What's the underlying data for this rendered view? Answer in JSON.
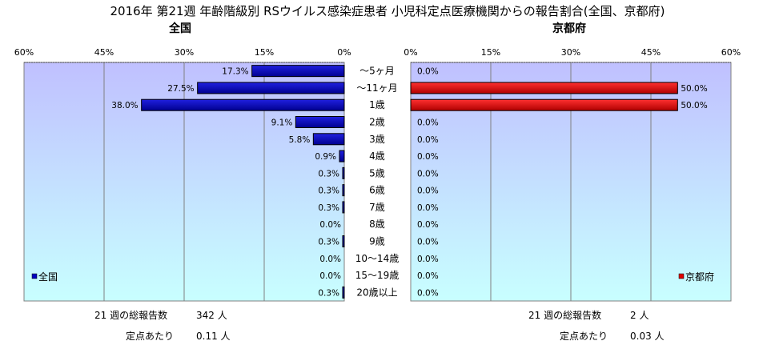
{
  "title": "2016年 第21週 年齢階級別 RSウイルス感染症患者 小児科定点医療機関からの報告割合(全国、京都府)",
  "chart_data": [
    {
      "type": "bar",
      "orientation": "horizontal",
      "direction": "right-to-left",
      "title": "全国",
      "categories": [
        "～5ヶ月",
        "～11ヶ月",
        "1歳",
        "2歳",
        "3歳",
        "4歳",
        "5歳",
        "6歳",
        "7歳",
        "8歳",
        "9歳",
        "10～14歳",
        "15～19歳",
        "20歳以上"
      ],
      "series": [
        {
          "name": "全国",
          "color": "#0000c0",
          "values": [
            17.3,
            27.5,
            38.0,
            9.1,
            5.8,
            0.9,
            0.3,
            0.3,
            0.3,
            0.0,
            0.3,
            0.0,
            0.0,
            0.3
          ],
          "labels": [
            "17.3%",
            "27.5%",
            "38.0%",
            "9.1%",
            "5.8%",
            "0.9%",
            "0.3%",
            "0.3%",
            "0.3%",
            "0.0%",
            "0.3%",
            "0.0%",
            "0.0%",
            "0.3%"
          ]
        }
      ],
      "xlim": [
        0,
        60
      ],
      "ticks": [
        "60%",
        "45%",
        "30%",
        "15%",
        "0%"
      ],
      "legend": {
        "label": "全国",
        "position": "bottom-left"
      },
      "grid": true
    },
    {
      "type": "bar",
      "orientation": "horizontal",
      "direction": "left-to-right",
      "title": "京都府",
      "categories": [
        "～5ヶ月",
        "～11ヶ月",
        "1歳",
        "2歳",
        "3歳",
        "4歳",
        "5歳",
        "6歳",
        "7歳",
        "8歳",
        "9歳",
        "10～14歳",
        "15～19歳",
        "20歳以上"
      ],
      "series": [
        {
          "name": "京都府",
          "color": "#e00000",
          "values": [
            0.0,
            50.0,
            50.0,
            0.0,
            0.0,
            0.0,
            0.0,
            0.0,
            0.0,
            0.0,
            0.0,
            0.0,
            0.0,
            0.0
          ],
          "labels": [
            "0.0%",
            "50.0%",
            "50.0%",
            "0.0%",
            "0.0%",
            "0.0%",
            "0.0%",
            "0.0%",
            "0.0%",
            "0.0%",
            "0.0%",
            "0.0%",
            "0.0%",
            "0.0%"
          ]
        }
      ],
      "xlim": [
        0,
        60
      ],
      "ticks": [
        "0%",
        "15%",
        "30%",
        "45%",
        "60%"
      ],
      "legend": {
        "label": "京都府",
        "position": "bottom-right"
      },
      "grid": true
    }
  ],
  "stats": {
    "national": {
      "total_label": "21 週の総報告数",
      "total_value": "342 人",
      "per_label": "定点あたり",
      "per_value": "0.11 人"
    },
    "kyoto": {
      "total_label": "21 週の総報告数",
      "total_value": "2 人",
      "per_label": "定点あたり",
      "per_value": "0.03 人"
    }
  },
  "colors": {
    "plot_top": "#c0c0ff",
    "plot_bottom": "#c8ffff",
    "grid": "#808080",
    "left_bar": "#0000c0",
    "right_bar": "#e00000"
  }
}
